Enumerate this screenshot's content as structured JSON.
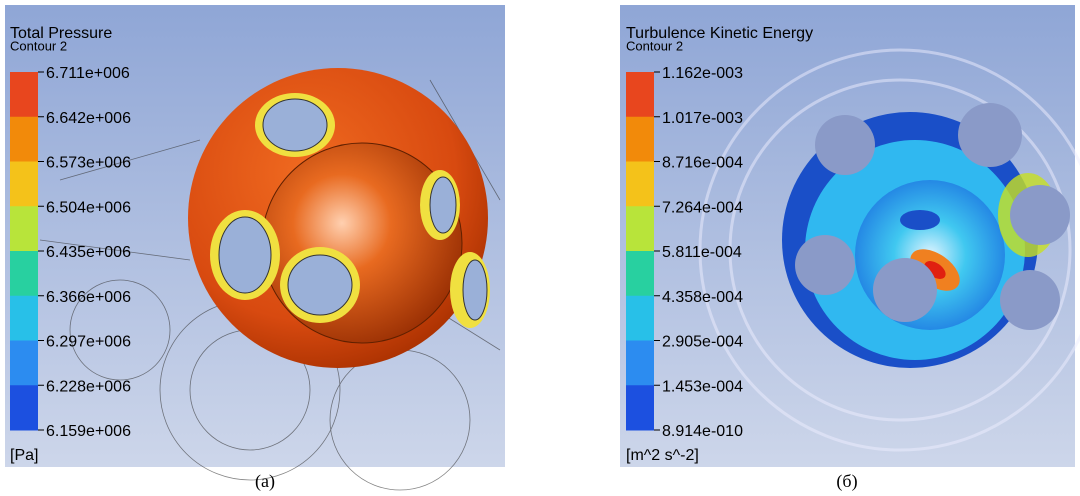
{
  "panels": [
    {
      "title": "Total Pressure",
      "subtitle": "Contour 2",
      "legend_labels": [
        "6.711e+006",
        "6.642e+006",
        "6.573e+006",
        "6.504e+006",
        "6.435e+006",
        "6.366e+006",
        "6.297e+006",
        "6.228e+006",
        "6.159e+006"
      ],
      "unit": "[Pa]",
      "caption": "(a)"
    },
    {
      "title": "Turbulence Kinetic Energy",
      "subtitle": "Contour 2",
      "legend_labels": [
        "1.162e-003",
        "1.017e-003",
        "8.716e-004",
        "7.264e-004",
        "5.811e-004",
        "4.358e-004",
        "2.905e-004",
        "1.453e-004",
        "8.914e-010"
      ],
      "unit": "[m^2 s^-2]",
      "caption": "(б)"
    }
  ]
}
